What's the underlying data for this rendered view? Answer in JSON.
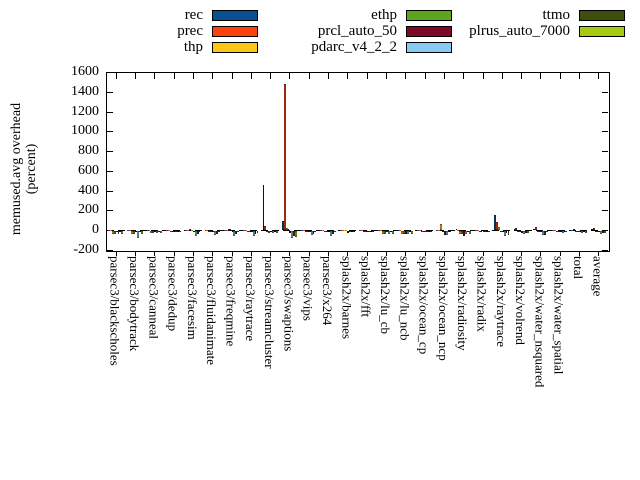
{
  "chart_data": {
    "type": "bar",
    "title": "",
    "ylabel_lines": [
      "memused.avg overhead",
      "(percent)"
    ],
    "ylim": [
      -200,
      1600
    ],
    "ytick_step": 200,
    "grid": false,
    "legend_position": "top-center, 3 columns",
    "zero_axis": "dashed",
    "categories": [
      "parsec3/blackscholes",
      "parsec3/bodytrack",
      "parsec3/canneal",
      "parsec3/dedup",
      "parsec3/facesim",
      "parsec3/fluidanimate",
      "parsec3/freqmine",
      "parsec3/raytrace",
      "parsec3/streamcluster",
      "parsec3/swaptions",
      "parsec3/vips",
      "parsec3/x264",
      "splash2x/barnes",
      "splash2x/fft",
      "splash2x/lu_cb",
      "splash2x/lu_ncb",
      "splash2x/ocean_cp",
      "splash2x/ocean_ncp",
      "splash2x/radiosity",
      "splash2x/radix",
      "splash2x/raytrace",
      "splash2x/volrend",
      "splash2x/water_nsquared",
      "splash2x/water_spatial",
      "total",
      "average"
    ],
    "legend_columns": [
      [
        "rec",
        "prec",
        "thp"
      ],
      [
        "ethp",
        "prcl_auto_50",
        "pdarc_v4_2_2"
      ],
      [
        "ttmo",
        "plrus_auto_7000"
      ]
    ],
    "series": [
      {
        "name": "rec",
        "color": "#0a4f8f",
        "values": [
          2,
          2,
          3,
          2,
          3,
          2,
          3,
          2,
          460,
          90,
          2,
          3,
          3,
          2,
          2,
          2,
          2,
          3,
          15,
          2,
          150,
          10,
          15,
          2,
          5,
          8
        ]
      },
      {
        "name": "prec",
        "color": "#fb4110",
        "values": [
          2,
          2,
          3,
          2,
          3,
          2,
          3,
          2,
          40,
          1480,
          2,
          3,
          3,
          2,
          2,
          2,
          2,
          3,
          5,
          2,
          80,
          25,
          35,
          2,
          8,
          20
        ]
      },
      {
        "name": "thp",
        "color": "#fcc619",
        "values": [
          -25,
          -30,
          -18,
          -4,
          10,
          -6,
          12,
          -10,
          -6,
          20,
          -8,
          -8,
          5,
          -4,
          -25,
          -30,
          -8,
          65,
          -30,
          -8,
          35,
          -10,
          -8,
          -12,
          -10,
          -8
        ]
      },
      {
        "name": "ethp",
        "color": "#5fa41d",
        "values": [
          -25,
          -30,
          -18,
          -4,
          5,
          -6,
          8,
          -12,
          -15,
          15,
          -8,
          -8,
          3,
          -4,
          -25,
          -30,
          -8,
          -6,
          -30,
          -8,
          -6,
          -10,
          -10,
          -12,
          -12,
          -10
        ]
      },
      {
        "name": "prcl_auto_50",
        "color": "#7d0b28",
        "values": [
          -4,
          -6,
          -6,
          -5,
          -4,
          -6,
          -4,
          -6,
          -10,
          -20,
          -6,
          -6,
          -20,
          -8,
          -8,
          -30,
          -8,
          -40,
          -50,
          -10,
          -10,
          -15,
          -8,
          -8,
          -10,
          -12
        ]
      },
      {
        "name": "pdarc_v4_2_2",
        "color": "#87cbf2",
        "values": [
          -30,
          -65,
          -15,
          -6,
          -45,
          -40,
          -45,
          -45,
          -18,
          -70,
          -42,
          -45,
          -8,
          -10,
          -25,
          -30,
          -8,
          -40,
          -30,
          -12,
          -50,
          -25,
          -35,
          -15,
          -18,
          -25
        ]
      },
      {
        "name": "ttmo",
        "color": "#3d4e0e",
        "values": [
          -6,
          -10,
          -8,
          -4,
          -25,
          -28,
          -25,
          -25,
          -12,
          -50,
          -28,
          -25,
          -5,
          -5,
          -10,
          -10,
          -5,
          -10,
          -12,
          -8,
          -15,
          -15,
          -35,
          -8,
          -10,
          -15
        ]
      },
      {
        "name": "plrus_auto_7000",
        "color": "#a5ca11",
        "values": [
          -25,
          -30,
          -18,
          -4,
          -8,
          -8,
          -10,
          -20,
          -15,
          -55,
          -12,
          -10,
          -5,
          -5,
          -25,
          -30,
          -8,
          -10,
          -30,
          -10,
          -35,
          -20,
          -12,
          -12,
          -14,
          -18
        ]
      }
    ]
  }
}
